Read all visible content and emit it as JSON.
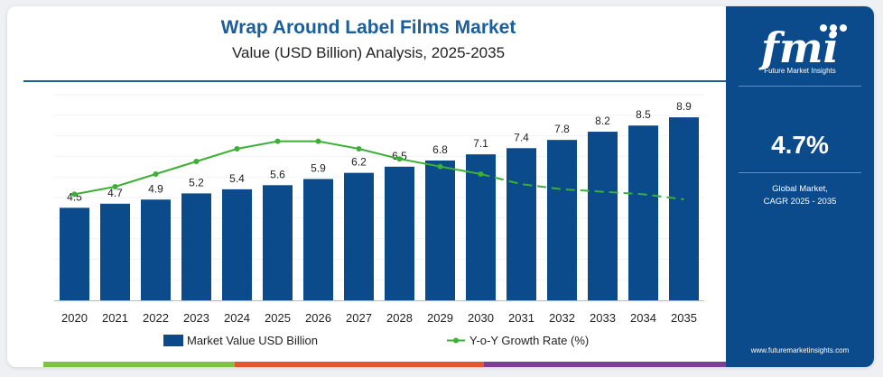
{
  "chart_data": {
    "type": "bar",
    "title": "Wrap Around Label Films Market",
    "subtitle": "Value (USD Billion) Analysis, 2025-2035",
    "categories": [
      "2020",
      "2021",
      "2022",
      "2023",
      "2024",
      "2025",
      "2026",
      "2027",
      "2028",
      "2029",
      "2030",
      "2031",
      "2032",
      "2033",
      "2034",
      "2035"
    ],
    "series": [
      {
        "name": "Market Value USD Billion",
        "type": "bar",
        "values": [
          4.5,
          4.7,
          4.9,
          5.2,
          5.4,
          5.6,
          5.9,
          6.2,
          6.5,
          6.8,
          7.1,
          7.4,
          7.8,
          8.2,
          8.5,
          8.9
        ],
        "labels": [
          "4.5",
          "4.7",
          "4.9",
          "5.2",
          "5.4",
          "5.6",
          "5.9",
          "6.2",
          "6.5",
          "6.8",
          "7.1",
          "7.4",
          "7.8",
          "8.2",
          "8.5",
          "8.9"
        ],
        "color": "#0b4a8b"
      },
      {
        "name": "Y-o-Y Growth Rate (%)",
        "type": "line",
        "values": [
          4.2,
          4.5,
          5.0,
          5.5,
          6.0,
          6.3,
          6.3,
          6.0,
          5.6,
          5.3,
          5.0,
          4.6,
          4.4,
          4.3,
          4.2,
          4.0
        ],
        "color": "#3cb035",
        "dashed_from_index": 11
      }
    ],
    "bar_ylim": [
      0,
      10
    ],
    "line_ylim": [
      0,
      8
    ],
    "grid": true,
    "legend_position": "bottom"
  },
  "legend": {
    "bar_label": "Market Value USD Billion",
    "line_label": "Y-o-Y Growth Rate (%)"
  },
  "sidebar": {
    "brand": "fmi",
    "tagline": "Future Market Insights",
    "cagr_value": "4.7%",
    "cagr_label_line1": "Global Market,",
    "cagr_label_line2": "CAGR 2025 - 2035",
    "url": "www.futuremarketinsights.com"
  },
  "colors": {
    "title": "#1a5e9c",
    "bar": "#0b4a8b",
    "line": "#3cb035",
    "sidebar": "#0b4a8b",
    "footer": [
      "#7dc242",
      "#e4572e",
      "#7b3f99"
    ]
  }
}
